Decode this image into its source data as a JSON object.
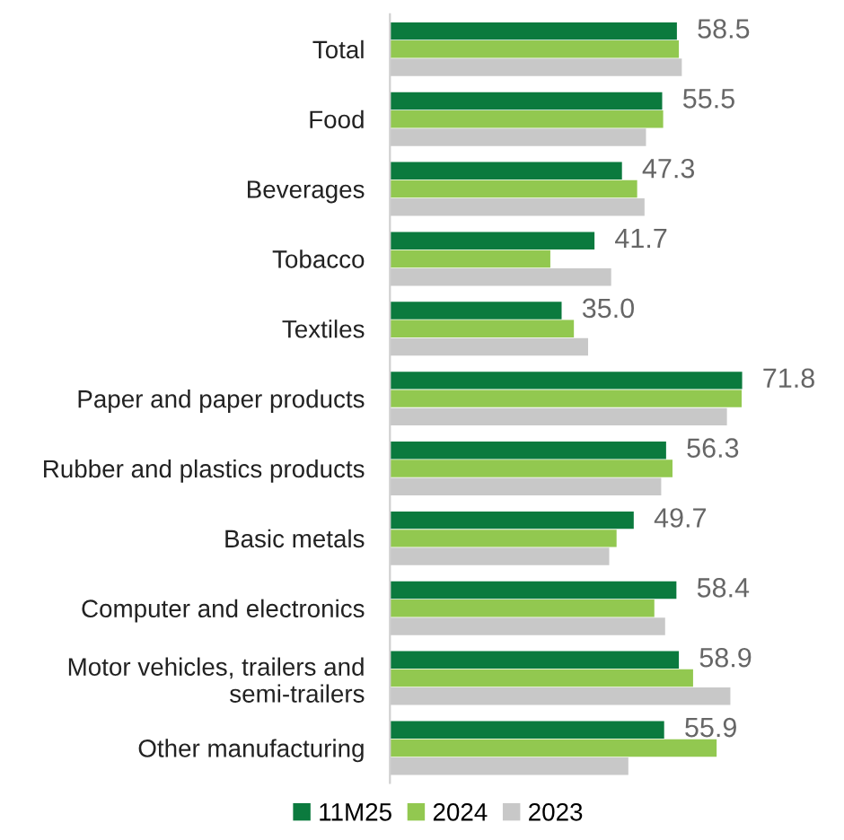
{
  "chart_data": {
    "type": "bar",
    "orientation": "horizontal",
    "legend": "bottom",
    "grid": false,
    "categories": [
      "Total",
      "Food",
      "Beverages",
      "Tobacco",
      "Textiles",
      "Paper and paper products",
      "Rubber and plastics products",
      "Basic metals",
      "Computer and electronics",
      "Motor vehicles, trailers and\nsemi-trailers",
      "Other manufacturing"
    ],
    "series": [
      {
        "name": "11M25",
        "color": "#0b7a3e",
        "values": [
          58.5,
          55.5,
          47.3,
          41.7,
          35.0,
          71.8,
          56.3,
          49.7,
          58.4,
          58.9,
          55.9
        ],
        "value_labels": [
          "58.5",
          "55.5",
          "47.3",
          "41.7",
          "35.0",
          "71.8",
          "56.3",
          "49.7",
          "58.4",
          "58.9",
          "55.9"
        ]
      },
      {
        "name": "2024",
        "color": "#92c850",
        "values": [
          58.9,
          55.7,
          50.4,
          32.7,
          37.5,
          71.7,
          57.6,
          46.2,
          53.9,
          61.8,
          66.6
        ]
      },
      {
        "name": "2023",
        "color": "#c8c8c8",
        "values": [
          59.5,
          52.2,
          51.9,
          45.1,
          40.4,
          68.7,
          55.3,
          44.7,
          56.1,
          69.4,
          48.6
        ]
      }
    ]
  }
}
